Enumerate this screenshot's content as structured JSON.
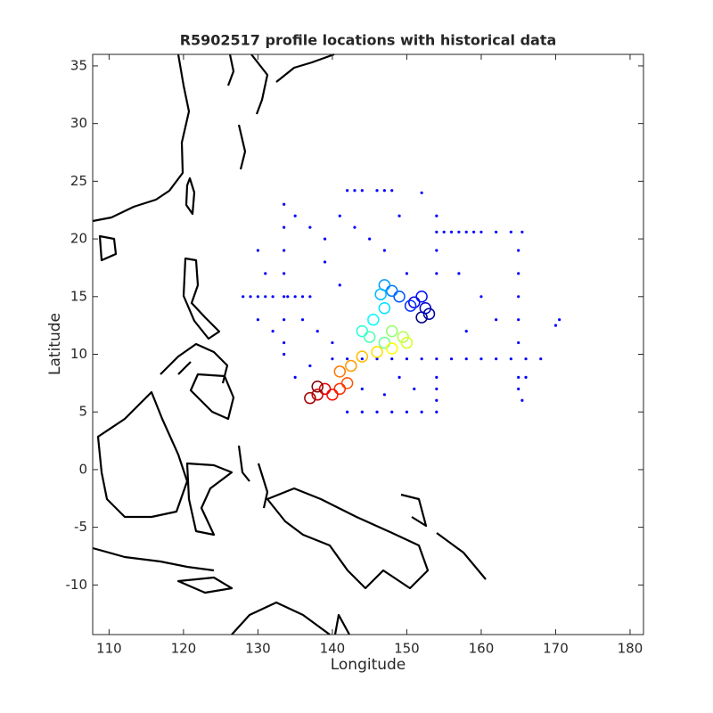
{
  "chart_data": {
    "type": "scatter",
    "title": "R5902517 profile locations with historical data",
    "x_label": "Longitude",
    "y_label": "Latitude",
    "xlim": [
      107.8,
      181.8
    ],
    "ylim": [
      -14.3,
      36
    ],
    "xticks": [
      110,
      120,
      130,
      140,
      150,
      160,
      170,
      180
    ],
    "yticks": [
      -10,
      -5,
      0,
      5,
      10,
      15,
      20,
      25,
      30,
      35
    ],
    "series": [
      {
        "color": "#0000ff",
        "marker": "dot",
        "x": [
          140,
          142,
          144,
          146,
          148,
          150,
          152,
          154,
          156,
          158,
          160,
          162,
          164,
          166,
          168,
          154,
          155,
          156,
          157,
          158,
          159,
          160,
          162,
          164,
          165.5,
          165,
          165,
          165,
          165,
          165,
          165,
          165,
          165.5,
          166,
          133.5,
          133.5,
          133.5,
          133.5,
          133.5,
          133.5,
          133.5,
          133.5,
          128,
          129,
          130,
          131,
          132,
          134,
          135,
          136,
          137,
          142,
          143,
          144,
          146,
          147,
          148,
          152,
          142,
          144,
          146,
          148,
          150,
          152,
          154,
          154,
          154,
          154,
          154,
          154,
          154,
          130,
          131,
          135,
          137,
          139,
          141,
          143,
          145,
          147,
          149,
          150,
          136,
          138,
          140,
          135,
          137,
          149,
          151,
          147,
          144,
          160,
          162,
          158,
          157,
          170.5,
          170,
          132,
          130,
          139,
          141
        ],
        "values": [
          9.6,
          9.6,
          9.6,
          9.6,
          9.6,
          9.6,
          9.6,
          9.6,
          9.6,
          9.6,
          9.6,
          9.6,
          9.6,
          9.6,
          9.6,
          20.6,
          20.6,
          20.6,
          20.6,
          20.6,
          20.6,
          20.6,
          20.6,
          20.6,
          20.6,
          19,
          17,
          15,
          13,
          11,
          8,
          7,
          6,
          8,
          23,
          21,
          19,
          17,
          15,
          13,
          11,
          10,
          15,
          15,
          15,
          15,
          15,
          15,
          15,
          15,
          15,
          24.2,
          24.2,
          24.2,
          24.2,
          24.2,
          24.2,
          24,
          5,
          5,
          5,
          5,
          5,
          5,
          5,
          22,
          19,
          17,
          8,
          7,
          6,
          19,
          17,
          22,
          21,
          20,
          22,
          21,
          20,
          19,
          22,
          17,
          13,
          12,
          11,
          8,
          9,
          8,
          7,
          6.5,
          7,
          15,
          13,
          12,
          17,
          13,
          12.5,
          12,
          13,
          18,
          16
        ]
      },
      {
        "colormap": "jet",
        "marker": "circle",
        "x": [
          152,
          153,
          152.5,
          151,
          152,
          150.5,
          149,
          148,
          147,
          146.5,
          147,
          145.5,
          144,
          145,
          147,
          148,
          149.5,
          150,
          148,
          146,
          144,
          142.5,
          141,
          142,
          141,
          140,
          139,
          138,
          137,
          138
        ],
        "values": [
          13.2,
          13.5,
          14,
          14.5,
          15,
          14.2,
          15,
          15.5,
          16,
          15.2,
          14,
          13,
          12,
          11.5,
          11,
          12,
          11.5,
          11,
          10.5,
          10.2,
          9.8,
          9,
          8.5,
          7.5,
          7,
          6.5,
          7,
          6.5,
          6.2,
          7.2
        ]
      }
    ]
  }
}
